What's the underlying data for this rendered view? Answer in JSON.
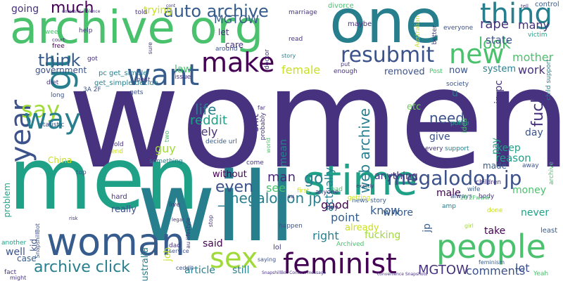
{
  "palette": {
    "purple": "#46327e",
    "indigo": "#3b528b",
    "blue": "#365c8d",
    "teal": "#277f8e",
    "green_teal": "#1fa187",
    "green": "#4ac16d",
    "light_green": "#6ece58",
    "lime": "#a0da39",
    "yellow_green": "#c8e020",
    "dark": "#440154",
    "violet": "#482878",
    "light": "#b5de2b"
  },
  "words": [
    {
      "text": "women",
      "color": "#46327e"
    },
    {
      "text": "men",
      "color": "#1fa187"
    },
    {
      "text": "will",
      "color": "#277f8e"
    },
    {
      "text": "one",
      "color": "#277f8e"
    },
    {
      "text": "archive org",
      "color": "#4ac16d"
    },
    {
      "text": "woman",
      "color": "#365c8d"
    },
    {
      "text": "people",
      "color": "#4ac16d"
    },
    {
      "text": "stime",
      "color": "#1fa187"
    },
    {
      "text": "gt",
      "color": "#277f8e"
    },
    {
      "text": "year",
      "color": "#3b528b"
    },
    {
      "text": "want",
      "color": "#365c8d"
    },
    {
      "text": "say",
      "color": "#a0da39"
    },
    {
      "text": "way",
      "color": "#277f8e"
    },
    {
      "text": "make",
      "color": "#440154"
    },
    {
      "text": "thing",
      "color": "#277f8e"
    },
    {
      "text": "new",
      "color": "#4ac16d"
    },
    {
      "text": "resubmit",
      "color": "#3b528b"
    },
    {
      "text": "feminist",
      "color": "#440154"
    },
    {
      "text": "sex",
      "color": "#a0da39"
    },
    {
      "text": "much",
      "color": "#440154"
    },
    {
      "text": "auto archive",
      "color": "#365c8d"
    },
    {
      "text": "think",
      "color": "#365c8d"
    },
    {
      "text": "archive click",
      "color": "#277f8e"
    },
    {
      "text": "megalodon jp",
      "color": "#3b528b"
    },
    {
      "text": "look",
      "color": "#4ac16d"
    },
    {
      "text": "web archive",
      "color": "#277f8e"
    },
    {
      "text": "fuck",
      "color": "#46327e"
    },
    {
      "text": "rape",
      "color": "#46327e"
    },
    {
      "text": "many",
      "color": "#46327e"
    },
    {
      "text": "state",
      "color": "#3b528b"
    },
    {
      "text": "mother",
      "color": "#4ac16d"
    },
    {
      "text": "work",
      "color": "#46327e"
    },
    {
      "text": "life",
      "color": "#277f8e"
    },
    {
      "text": "reddit",
      "color": "#1fa187"
    },
    {
      "text": "likely",
      "color": "#46327e"
    },
    {
      "text": "need",
      "color": "#3b528b"
    },
    {
      "text": "even",
      "color": "#3b528b"
    },
    {
      "text": "see",
      "color": "#4ac16d"
    },
    {
      "text": "man",
      "color": "#482878"
    },
    {
      "text": "go",
      "color": "#277f8e"
    },
    {
      "text": "MGTOW",
      "color": "#365c8d"
    },
    {
      "text": "comments",
      "color": "#3b528b"
    },
    {
      "text": "lot",
      "color": "#3b528b"
    },
    {
      "text": "female",
      "color": "#c8e020"
    },
    {
      "text": "government",
      "color": "#3b528b"
    },
    {
      "text": "law",
      "color": "#4ac16d"
    },
    {
      "text": "removed",
      "color": "#3b528b"
    },
    {
      "text": "now",
      "color": "#3b528b"
    },
    {
      "text": "system",
      "color": "#277f8e"
    },
    {
      "text": "jp pc",
      "color": "#46327e"
    },
    {
      "text": "etc",
      "color": "#6ece58"
    },
    {
      "text": "give",
      "color": "#3b528b"
    },
    {
      "text": "keep",
      "color": "#1fa187"
    },
    {
      "text": "reason",
      "color": "#1fa187"
    },
    {
      "text": "day",
      "color": "#3b528b"
    },
    {
      "text": "guy",
      "color": "#a0da39"
    },
    {
      "text": "China",
      "color": "#c8e020"
    },
    {
      "text": "problem",
      "color": "#1fa187"
    },
    {
      "text": "really",
      "color": "#3b528b"
    },
    {
      "text": "without",
      "color": "#440154"
    },
    {
      "text": "_megalodon jp",
      "color": "#277f8e"
    },
    {
      "text": "good",
      "color": "#440154"
    },
    {
      "text": "point",
      "color": "#365c8d"
    },
    {
      "text": "know",
      "color": "#365c8d"
    },
    {
      "text": "whore",
      "color": "#365c8d"
    },
    {
      "text": "right",
      "color": "#277f8e"
    },
    {
      "text": "already",
      "color": "#c8e020"
    },
    {
      "text": "fucking",
      "color": "#a0da39"
    },
    {
      "text": "anything",
      "color": "#46327e"
    },
    {
      "text": "male",
      "color": "#440154"
    },
    {
      "text": "money",
      "color": "#4ac16d"
    },
    {
      "text": "take",
      "color": "#440154"
    },
    {
      "text": "never",
      "color": "#1fa187"
    },
    {
      "text": "said",
      "color": "#440154"
    },
    {
      "text": "well",
      "color": "#3b528b"
    },
    {
      "text": "case",
      "color": "#365c8d"
    },
    {
      "text": "article",
      "color": "#277f8e"
    },
    {
      "text": "still",
      "color": "#277f8e"
    },
    {
      "text": "job",
      "color": "#c8e020"
    },
    {
      "text": "Australia",
      "color": "#277f8e"
    },
    {
      "text": "actually",
      "color": "#277f8e"
    },
    {
      "text": "pay",
      "color": "#1fa187"
    },
    {
      "text": "made",
      "color": "#365c8d"
    },
    {
      "text": "going",
      "color": "#46327e"
    },
    {
      "text": "trying",
      "color": "#c8e020"
    },
    {
      "text": "care",
      "color": "#46327e"
    },
    {
      "text": "let",
      "color": "#46327e"
    },
    {
      "text": "MGTOW",
      "color": "#46327e"
    },
    {
      "text": "shit",
      "color": "#46327e"
    },
    {
      "text": "mean",
      "color": "#277f8e"
    },
    {
      "text": "jp",
      "color": "#365c8d"
    },
    {
      "text": "u",
      "color": "#277f8e"
    },
    {
      "text": "kid",
      "color": "#3b528b"
    },
    {
      "text": "idea",
      "color": "#4ac16d"
    },
    {
      "text": "get_simple decide",
      "color": "#277f8e"
    },
    {
      "text": "pc get_simple",
      "color": "#277f8e"
    },
    {
      "text": "told",
      "color": "#46327e"
    },
    {
      "text": "divorce",
      "color": "#4ac16d"
    },
    {
      "text": "control",
      "color": "#365c8d"
    },
    {
      "text": "everyone",
      "color": "#3b528b"
    },
    {
      "text": "victim",
      "color": "#1fa187"
    },
    {
      "text": "child support",
      "color": "#277f8e"
    },
    {
      "text": "society",
      "color": "#3b528b"
    },
    {
      "text": "police",
      "color": "#1fa187"
    },
    {
      "text": "support",
      "color": "#277f8e"
    },
    {
      "text": "away",
      "color": "#3b528b"
    },
    {
      "text": "least",
      "color": "#365c8d"
    },
    {
      "text": "Yeah",
      "color": "#4ac16d"
    },
    {
      "text": "feminism",
      "color": "#365c8d"
    },
    {
      "text": "done",
      "color": "#c8e020"
    },
    {
      "text": "wife",
      "color": "#365c8d"
    },
    {
      "text": "always",
      "color": "#3b528b"
    },
    {
      "text": "amp",
      "color": "#277f8e"
    },
    {
      "text": "Archived",
      "color": "#4ac16d"
    },
    {
      "text": "news story",
      "color": "#365c8d"
    },
    {
      "text": "happen",
      "color": "#3b528b"
    },
    {
      "text": "first",
      "color": "#c8e020"
    },
    {
      "text": "bad",
      "color": "#4ac16d"
    },
    {
      "text": "anyone",
      "color": "#46327e"
    },
    {
      "text": "lol",
      "color": "#46327e"
    },
    {
      "text": "another",
      "color": "#1fa187"
    },
    {
      "text": "fact",
      "color": "#46327e"
    },
    {
      "text": "saying",
      "color": "#3b528b"
    },
    {
      "text": "live",
      "color": "#46327e"
    },
    {
      "text": "dad",
      "color": "#46327e"
    },
    {
      "text": "hard",
      "color": "#46327e"
    },
    {
      "text": "top",
      "color": "#365c8d"
    },
    {
      "text": "something",
      "color": "#277f8e"
    },
    {
      "text": "come",
      "color": "#46327e"
    },
    {
      "text": "decide url",
      "color": "#365c8d"
    },
    {
      "text": "end",
      "color": "#c8e020"
    },
    {
      "text": "old",
      "color": "#46327e"
    },
    {
      "text": "two",
      "color": "#4ac16d"
    },
    {
      "text": "use",
      "color": "#46327e"
    },
    {
      "text": "issue",
      "color": "#46327e"
    },
    {
      "text": "best",
      "color": "#46327e"
    },
    {
      "text": "gets",
      "color": "#3b528b"
    },
    {
      "text": "got",
      "color": "#46327e"
    },
    {
      "text": "help",
      "color": "#46327e"
    },
    {
      "text": "week",
      "color": "#4ac16d"
    },
    {
      "text": "free",
      "color": "#440154"
    },
    {
      "text": "diet",
      "color": "#46327e"
    },
    {
      "text": "long",
      "color": "#3b528b"
    },
    {
      "text": "3A 2F",
      "color": "#3b528b"
    },
    {
      "text": "statistic",
      "color": "#3b528b"
    },
    {
      "text": "read",
      "color": "#46327e"
    },
    {
      "text": "maybe",
      "color": "#46327e"
    },
    {
      "text": "marriage",
      "color": "#46327e"
    },
    {
      "text": "enough",
      "color": "#46327e"
    },
    {
      "text": "Post",
      "color": "#4ac16d"
    },
    {
      "text": "better",
      "color": "#46327e"
    },
    {
      "text": "Australian",
      "color": "#c8e020"
    },
    {
      "text": "put",
      "color": "#46327e"
    },
    {
      "text": "around",
      "color": "#3b528b"
    },
    {
      "text": "doctor",
      "color": "#46327e"
    },
    {
      "text": "story",
      "color": "#277f8e"
    },
    {
      "text": "far",
      "color": "#46327e"
    },
    {
      "text": "probably",
      "color": "#46327e"
    },
    {
      "text": "boy",
      "color": "#46327e"
    },
    {
      "text": "every",
      "color": "#46327e"
    },
    {
      "text": "children",
      "color": "#46327e"
    },
    {
      "text": "body",
      "color": "#46327e"
    },
    {
      "text": "kind",
      "color": "#46327e"
    },
    {
      "text": "archive",
      "color": "#4ac16d"
    },
    {
      "text": "getting",
      "color": "#c8e020"
    },
    {
      "text": "exactly",
      "color": "#46327e"
    },
    {
      "text": "au lifestyle",
      "color": "#46327e"
    },
    {
      "text": "SnapshillBot",
      "color": "#3b528b"
    },
    {
      "text": "risk",
      "color": "#46327e"
    },
    {
      "text": "might",
      "color": "#46327e"
    },
    {
      "text": "ceddit",
      "color": "#3b528b"
    },
    {
      "text": "service",
      "color": "#3b528b"
    },
    {
      "text": "legal",
      "color": "#46327e"
    },
    {
      "text": "stop",
      "color": "#46327e"
    },
    {
      "text": "au",
      "color": "#46327e"
    },
    {
      "text": "world",
      "color": "#4ac16d"
    },
    {
      "text": "2F 2Fwww",
      "color": "#4ac16d"
    },
    {
      "text": "girl",
      "color": "#a0da39"
    },
    {
      "text": "sure",
      "color": "#46327e"
    },
    {
      "text": "SnapshillBot Contact message",
      "color": "#46327e"
    },
    {
      "text": "convenience Snapshots",
      "color": "#46327e"
    },
    {
      "text": "domestic violence",
      "color": "#46327e"
    },
    {
      "text": "tell",
      "color": "#46327e"
    },
    {
      "text": "cont",
      "color": "#46327e"
    },
    {
      "text": "court",
      "color": "#46327e"
    }
  ]
}
